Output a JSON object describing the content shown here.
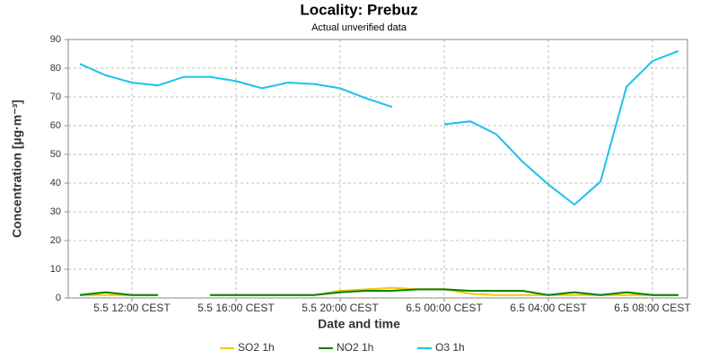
{
  "chart_data": {
    "type": "line",
    "title": "Locality: Prebuz",
    "subtitle": "Actual unverified data",
    "x_label": "Date and time",
    "y_label": "Concentration [µg·m⁻³]",
    "categories": [
      null,
      null,
      "5.5 12:00 CEST",
      null,
      null,
      null,
      "5.5 16:00 CEST",
      null,
      null,
      null,
      "5.5 20:00 CEST",
      null,
      null,
      null,
      "6.5 00:00 CEST",
      null,
      null,
      null,
      "6.5 04:00 CEST",
      null,
      null,
      null,
      "6.5 08:00 CEST",
      null
    ],
    "series": [
      {
        "name": "SO2 1h",
        "color": "#f2c800",
        "values": [
          1,
          1,
          1,
          1,
          null,
          1,
          1,
          1,
          1,
          1,
          2.5,
          3,
          3.5,
          3,
          3,
          1.5,
          1,
          1,
          1,
          1,
          1,
          1,
          1,
          1
        ]
      },
      {
        "name": "NO2 1h",
        "color": "#008000",
        "values": [
          1,
          2,
          1,
          1,
          null,
          1,
          1,
          1,
          1,
          1,
          2,
          2.5,
          2.5,
          3,
          3,
          2.5,
          2.5,
          2.5,
          1,
          2,
          1,
          2,
          1,
          1
        ]
      },
      {
        "name": "O3 1h",
        "color": "#1ec0f0",
        "values": [
          81.5,
          77.5,
          75,
          74,
          77,
          77,
          75.5,
          73,
          75,
          74.5,
          73,
          69.5,
          66.5,
          null,
          60.5,
          61.5,
          57,
          47.5,
          39.5,
          32.5,
          40.5,
          73.5,
          82.5,
          86
        ]
      }
    ],
    "ylim": [
      0,
      90
    ],
    "yticks": [
      0,
      10,
      20,
      30,
      40,
      50,
      60,
      70,
      80,
      90
    ],
    "grid": true,
    "legend": "bottom"
  }
}
